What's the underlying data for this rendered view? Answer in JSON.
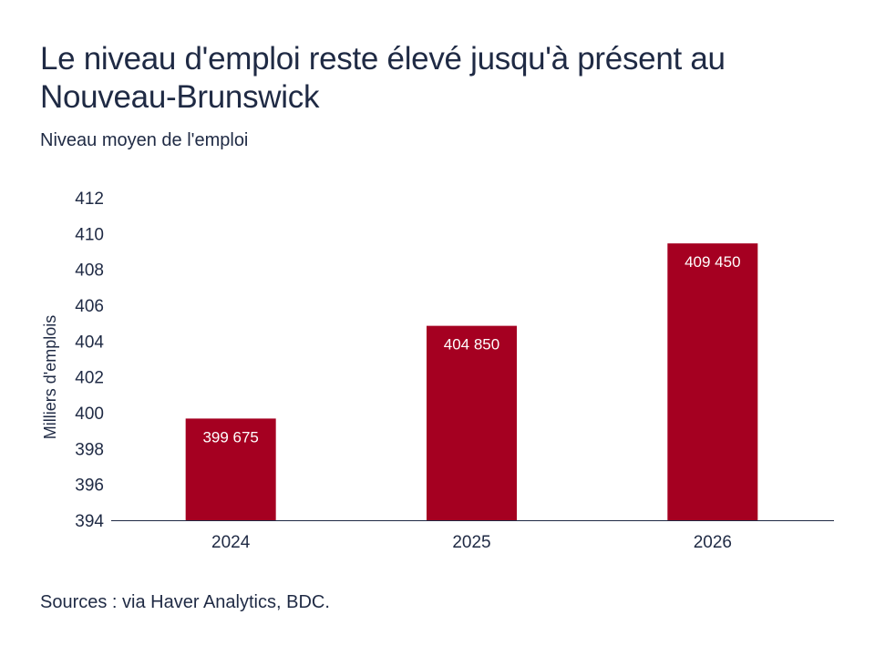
{
  "title": "Le niveau d'emploi reste élevé jusqu'à présent au Nouveau-Brunswick",
  "subtitle": "Niveau moyen de l'emploi",
  "source": "Sources : via Haver Analytics, BDC.",
  "colors": {
    "bar": "#a50021",
    "axis": "#1f2a44",
    "text": "#1f2a44"
  },
  "chart_data": {
    "type": "bar",
    "categories": [
      "2024",
      "2025",
      "2026"
    ],
    "values": [
      399.675,
      404.85,
      409.45
    ],
    "data_labels": [
      "399 675",
      "404 850",
      "409 450"
    ],
    "ylabel": "Milliers d'emplois",
    "ylim": [
      394,
      412
    ],
    "yticks": [
      394,
      396,
      398,
      400,
      402,
      404,
      406,
      408,
      410,
      412
    ],
    "grid": false,
    "legend": "none"
  }
}
